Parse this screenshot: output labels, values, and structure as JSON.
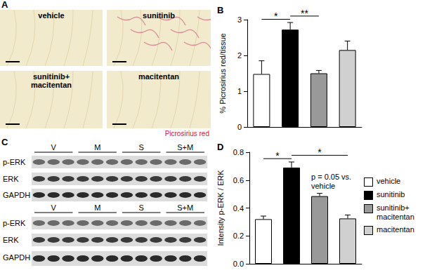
{
  "panels": {
    "A": {
      "label": "A",
      "tiles": [
        "vehicle",
        "sunitinib",
        "sunitinib+ macitentan",
        "macitentan"
      ],
      "stain": "Picrosirius red"
    },
    "C": {
      "label": "C",
      "blots": [
        {
          "lanes": [
            "V",
            "M",
            "S",
            "S+M"
          ],
          "rows": [
            "p-ERK",
            "ERK",
            "GAPDH"
          ]
        },
        {
          "lanes": [
            "V",
            "M",
            "S",
            "S+M"
          ],
          "rows": [
            "p-ERK",
            "ERK",
            "GAPDH"
          ]
        }
      ]
    }
  },
  "chart_data": [
    {
      "type": "bar",
      "title": "B",
      "ylabel": "% Picrosirius red/tissue",
      "categories": [
        "vehicle",
        "sunitinib",
        "sunitinib+ macitentan",
        "macitentan"
      ],
      "values": [
        1.48,
        2.72,
        1.5,
        2.15
      ],
      "errors": [
        0.37,
        0.2,
        0.08,
        0.25
      ],
      "colors": [
        "#ffffff",
        "#000000",
        "#999999",
        "#d0d0d0"
      ],
      "ylim": [
        0,
        3
      ],
      "yticks": [
        0,
        1,
        2,
        3
      ],
      "tick_labels": "y",
      "grid": false,
      "legend": "right",
      "annotations": [
        {
          "from": "vehicle",
          "to": "sunitinib",
          "text": "*"
        },
        {
          "from": "sunitinib",
          "to": "sunitinib+ macitentan",
          "text": "**"
        }
      ]
    },
    {
      "type": "bar",
      "title": "D",
      "ylabel": "Intensity p-ERK / ERK",
      "categories": [
        "vehicle",
        "sunitinib",
        "sunitinib+ macitentan",
        "macitentan"
      ],
      "values": [
        0.32,
        0.69,
        0.485,
        0.325
      ],
      "errors": [
        0.022,
        0.04,
        0.02,
        0.025
      ],
      "colors": [
        "#ffffff",
        "#000000",
        "#999999",
        "#d0d0d0"
      ],
      "ylim": [
        0,
        0.8
      ],
      "yticks": [
        {
          "value": 0,
          "label": "0.0"
        },
        {
          "value": 0.2,
          "label": "0.2"
        },
        {
          "value": 0.4,
          "label": "0.4"
        },
        {
          "value": 0.6,
          "label": "0.6"
        },
        {
          "value": 0.8,
          "label": "0.8"
        }
      ],
      "tick_labels": "y",
      "grid": false,
      "annotations": [
        {
          "from": "vehicle",
          "to": "sunitinib",
          "text": "*"
        },
        {
          "from": "sunitinib",
          "to": "macitentan",
          "text": "*"
        },
        {
          "at": "sunitinib+ macitentan",
          "text": "p = 0.05 vs. vehicle"
        }
      ]
    }
  ]
}
